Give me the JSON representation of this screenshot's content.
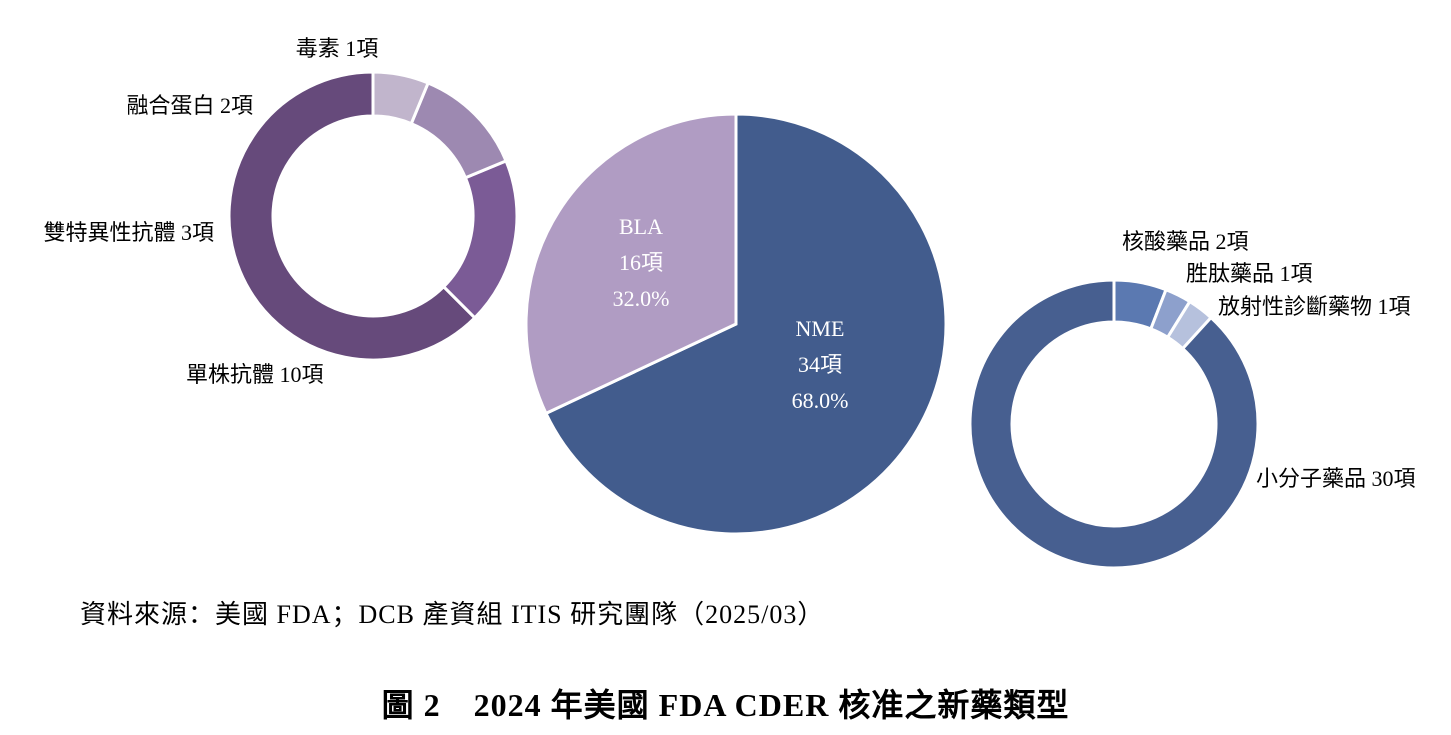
{
  "chart_data": [
    {
      "type": "pie",
      "categories": [
        "NME",
        "BLA"
      ],
      "values": [
        34,
        16
      ],
      "value_labels": [
        "34項",
        "16項"
      ],
      "percent_labels": [
        "68.0%",
        "32.0%"
      ],
      "colors": [
        "#425c8d",
        "#b09cc3"
      ]
    },
    {
      "type": "pie",
      "variant": "donut",
      "categories": [
        "單株抗體",
        "雙特異性抗體",
        "融合蛋白",
        "毒素"
      ],
      "values": [
        10,
        3,
        2,
        1
      ],
      "labels": [
        "單株抗體 10項",
        "雙特異性抗體 3項",
        "融合蛋白 2項",
        "毒素 1項"
      ],
      "colors": [
        "#664a7b",
        "#7b5b96",
        "#9d89b1",
        "#c1b5cc"
      ]
    },
    {
      "type": "pie",
      "variant": "donut",
      "categories": [
        "小分子藥品",
        "核酸藥品",
        "胜肽藥品",
        "放射性診斷藥物"
      ],
      "values": [
        30,
        2,
        1,
        1
      ],
      "labels": [
        "小分子藥品 30項",
        "核酸藥品 2項",
        "胜肽藥品 1項",
        "放射性診斷藥物 1項"
      ],
      "colors": [
        "#475f90",
        "#5b79b1",
        "#8da0cc",
        "#b6c1dd"
      ]
    }
  ],
  "source": "資料來源：美國 FDA；DCB 產資組 ITIS 研究團隊（2025/03）",
  "caption": "圖 2　2024 年美國 FDA CDER 核准之新藥類型"
}
